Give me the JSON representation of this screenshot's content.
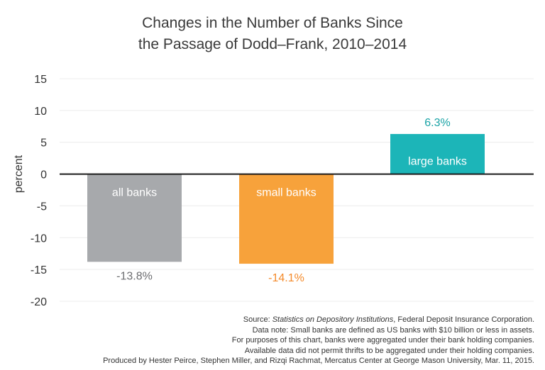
{
  "chart_data": {
    "type": "bar",
    "title_line1": "Changes in the Number of Banks Since",
    "title_line2": "the Passage of Dodd–Frank, 2010–2014",
    "ylabel": "percent",
    "xlabel": "",
    "ylim": [
      -20,
      15
    ],
    "yticks": [
      15,
      10,
      5,
      0,
      -5,
      -10,
      -15,
      -20
    ],
    "grid": true,
    "categories": [
      "all banks",
      "small banks",
      "large banks"
    ],
    "values": [
      -13.8,
      -14.1,
      6.3
    ],
    "data_labels": [
      "-13.8%",
      "-14.1%",
      "6.3%"
    ],
    "colors": [
      "#a7a9ac",
      "#f7a23b",
      "#1cb5b8"
    ],
    "label_colors": [
      "#6d6e71",
      "#f48a2a",
      "#1aa3a6"
    ]
  },
  "notes": {
    "source_prefix": "Source: ",
    "source_title": "Statistics on Depository Institutions",
    "source_suffix": ", Federal Deposit Insurance Corporation.",
    "line2": "Data note: Small banks are defined as US banks with $10 billion or less in assets.",
    "line3": "For purposes of this chart, banks were aggregated under their bank holding companies.",
    "line4": "Available data did not permit thrifts to be aggregated under their holding companies.",
    "line5": "Produced by Hester Peirce, Stephen Miller, and Rizqi Rachmat, Mercatus Center at George Mason University, Mar. 11, 2015."
  }
}
